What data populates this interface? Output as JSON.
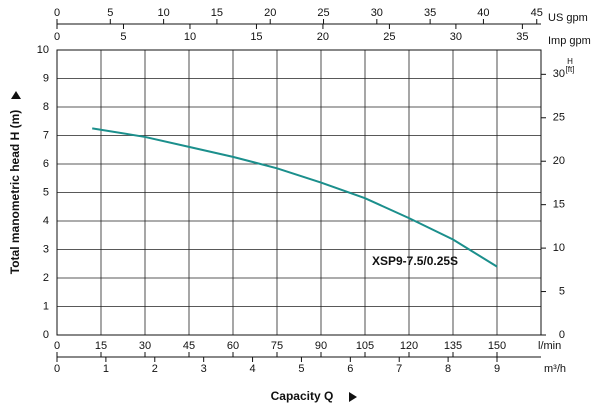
{
  "chart_data": {
    "type": "line",
    "x_label": "Capacity Q",
    "y_label": "Total manometric head H (m)",
    "x_unit": "l/min",
    "x": [
      12,
      30,
      45,
      60,
      75,
      90,
      105,
      120,
      135,
      150
    ],
    "series": [
      {
        "name": "XSP9-7.5/0.25S",
        "color": "#1b8f8c",
        "values": [
          7.25,
          6.95,
          6.6,
          6.25,
          5.85,
          5.35,
          4.8,
          4.1,
          3.35,
          2.4
        ]
      }
    ],
    "xlim": [
      0,
      165
    ],
    "xticks": [
      0,
      15,
      30,
      45,
      60,
      75,
      90,
      105,
      120,
      135,
      150
    ],
    "ylim": [
      0,
      10
    ],
    "yticks": [
      0,
      1,
      2,
      3,
      4,
      5,
      6,
      7,
      8,
      9,
      10
    ],
    "y2_label": [
      "H",
      "[ft]"
    ],
    "y2lim": [
      0,
      32.8
    ],
    "y2ticks": [
      0,
      5,
      10,
      15,
      20,
      25,
      30
    ],
    "grid": true,
    "extra_x_axes": [
      {
        "unit": "m³/h",
        "position": "bottom",
        "lim": [
          0,
          9.9
        ],
        "ticks": [
          0,
          1,
          2,
          3,
          4,
          5,
          6,
          7,
          8,
          9
        ]
      },
      {
        "unit": "US gpm",
        "position": "top",
        "lim": [
          0,
          45.4
        ],
        "ticks": [
          0,
          5,
          10,
          15,
          20,
          25,
          30,
          35,
          40,
          45
        ]
      },
      {
        "unit": "Imp gpm",
        "position": "top",
        "lim": [
          0,
          36.4
        ],
        "ticks": [
          0,
          5,
          10,
          15,
          20,
          25,
          30,
          35
        ]
      }
    ]
  }
}
